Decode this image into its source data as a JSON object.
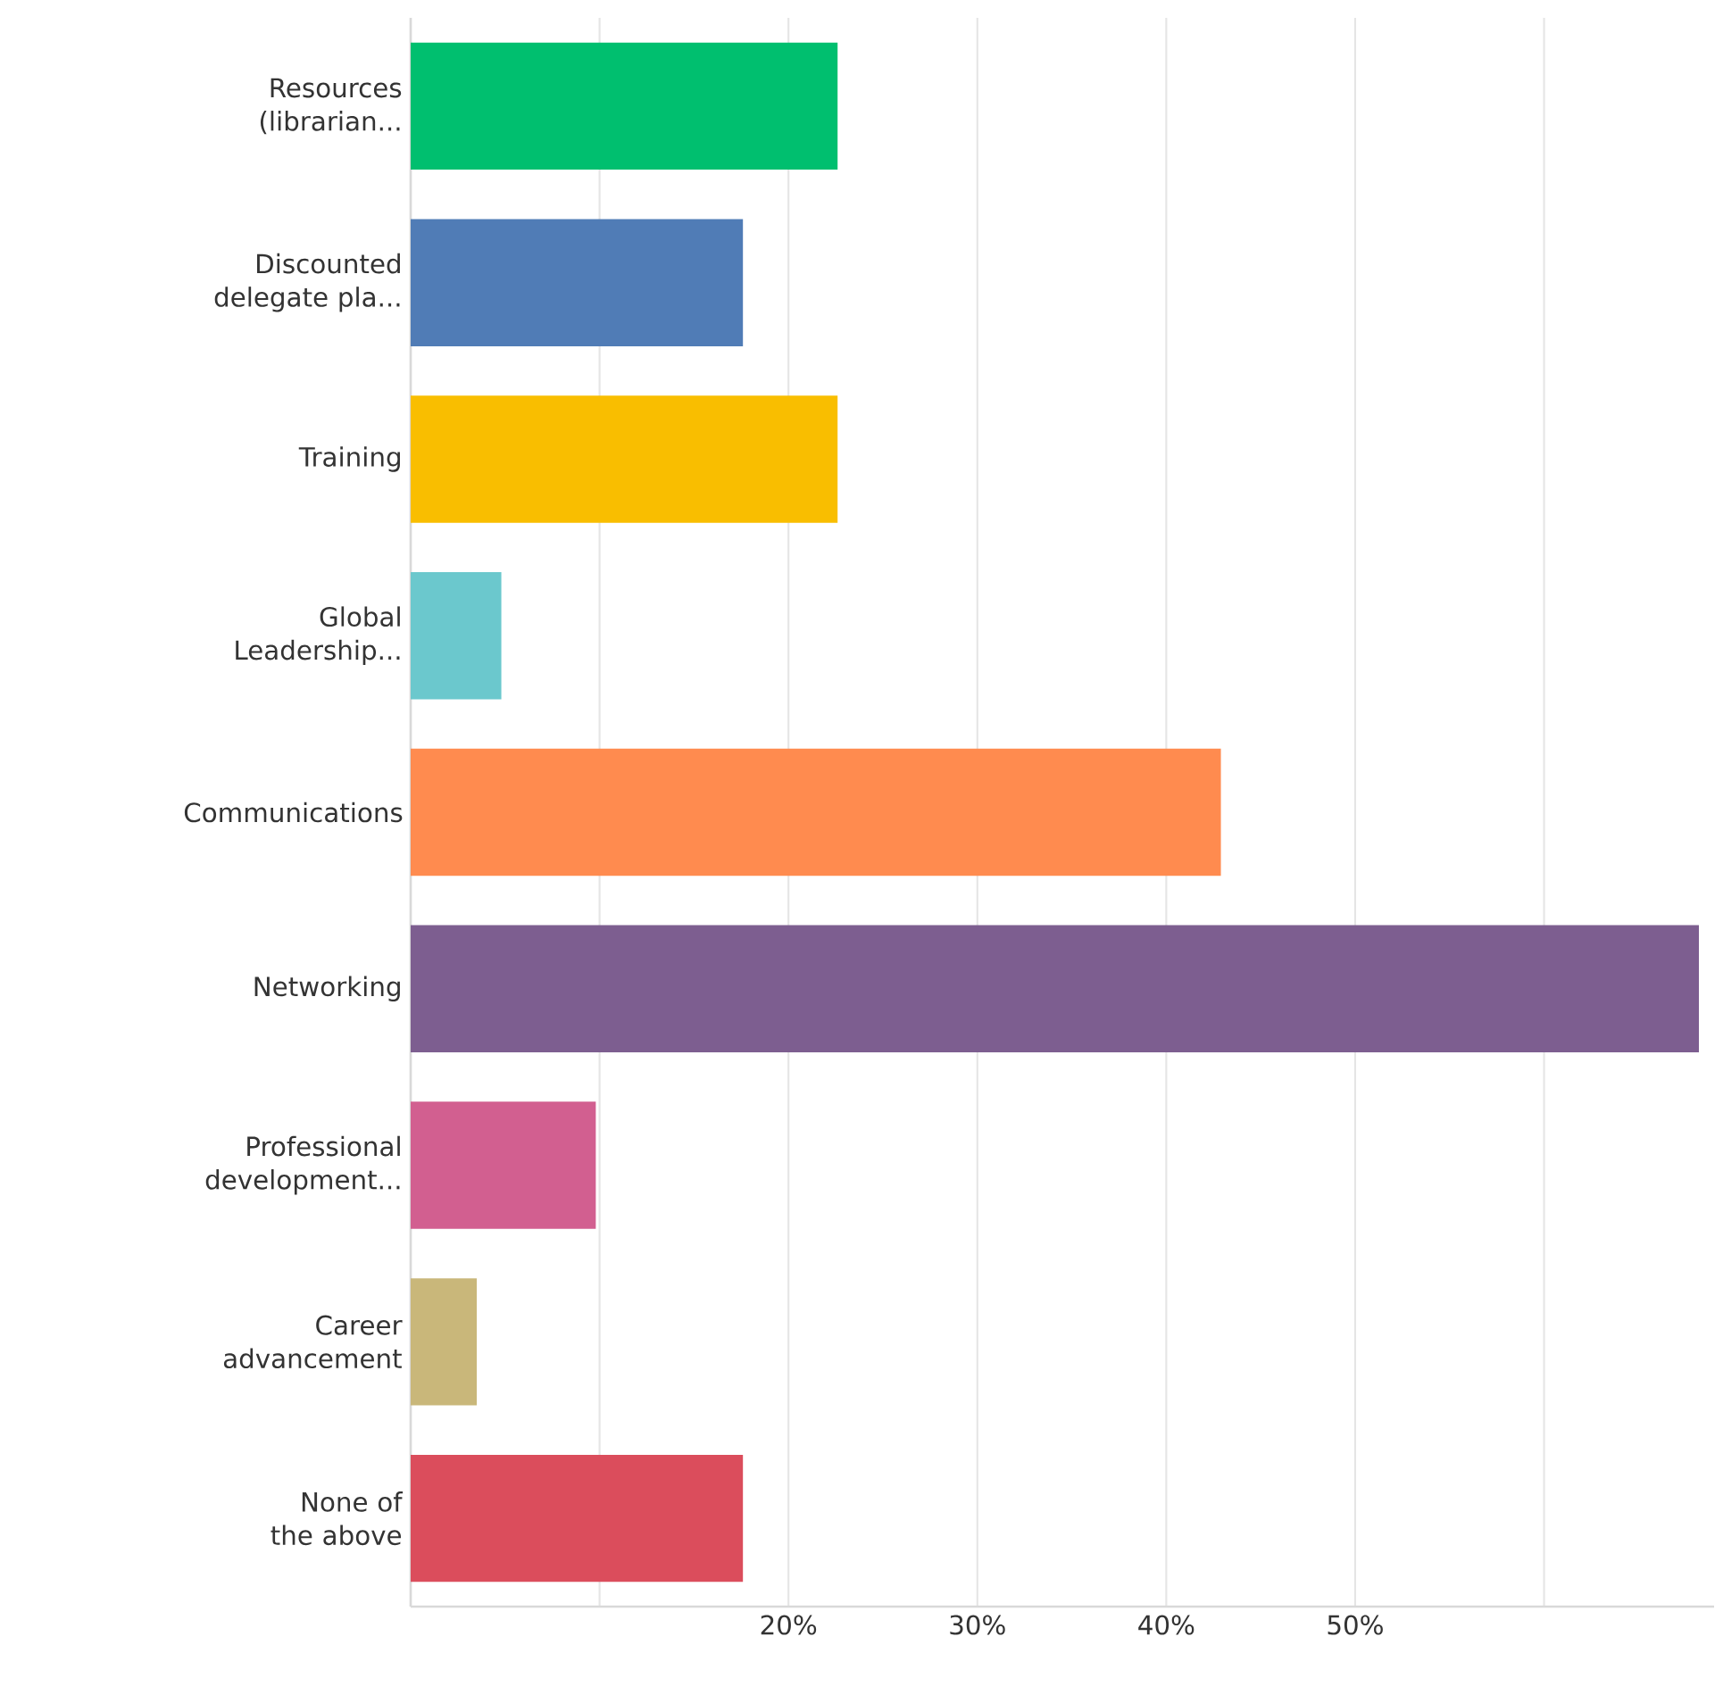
{
  "chart_data": {
    "type": "bar",
    "orientation": "horizontal",
    "categories": [
      "Resources (librarian...",
      "Discounted delegate pla...",
      "Training",
      "Global Leadership...",
      "Communications",
      "Networking",
      "Professional development...",
      "Career advancement",
      "None of the above"
    ],
    "values": [
      22.6,
      17.6,
      22.6,
      4.8,
      42.9,
      68.2,
      9.8,
      3.5,
      17.6
    ],
    "colors": [
      "#00bf6f",
      "#507cb6",
      "#f9be00",
      "#6bc8cd",
      "#ff8b4f",
      "#7d5e90",
      "#d25f90",
      "#c9b77a",
      "#db4d5c"
    ],
    "xlim": [
      0,
      69
    ],
    "xticks": [
      {
        "value": 10,
        "label": null
      },
      {
        "value": 20,
        "label": "20%"
      },
      {
        "value": 30,
        "label": "30%"
      },
      {
        "value": 40,
        "label": "40%"
      },
      {
        "value": 50,
        "label": "50%"
      },
      {
        "value": 60,
        "label": null
      }
    ],
    "grid": "x"
  }
}
